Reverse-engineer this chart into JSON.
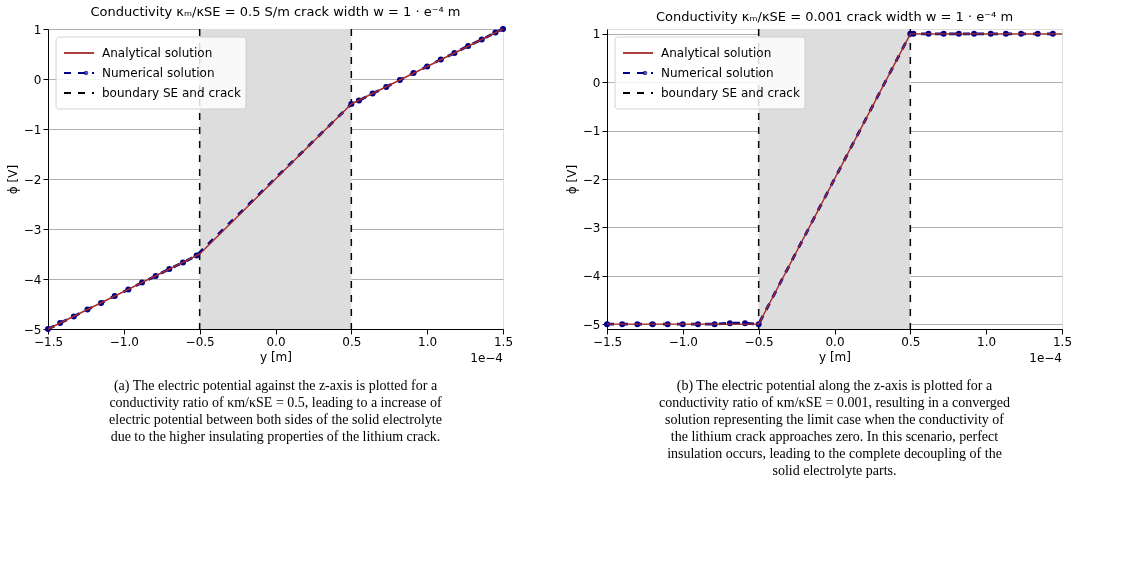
{
  "chart_data": [
    {
      "type": "line",
      "title": "Conductivity κₘ/κSE = 0.5 S/m crack width w = 1 · e⁻⁴ m",
      "xlabel": "y [m]",
      "ylabel": "ϕ [V]",
      "series": [
        {
          "name": "Analytical solution",
          "color": "#a52a2a",
          "x": [
            -1.5,
            -0.5,
            0.5,
            1.5
          ],
          "values": [
            -5,
            -3.5,
            -0.5,
            1
          ]
        },
        {
          "name": "Numerical solution",
          "color": "#00008b",
          "marker": "circle",
          "line_style": "dashed",
          "x": [
            -1.5,
            -1.42,
            -1.33,
            -1.24,
            -1.15,
            -1.06,
            -0.97,
            -0.88,
            -0.79,
            -0.7,
            -0.61,
            -0.52,
            0.5,
            0.55,
            0.64,
            0.73,
            0.82,
            0.91,
            1.0,
            1.09,
            1.18,
            1.27,
            1.36,
            1.45,
            1.5
          ],
          "values": [
            -5,
            -4.88,
            -4.75,
            -4.61,
            -4.48,
            -4.34,
            -4.21,
            -4.07,
            -3.94,
            -3.8,
            -3.67,
            -3.53,
            -0.5,
            -0.43,
            -0.29,
            -0.16,
            -0.02,
            0.12,
            0.25,
            0.39,
            0.52,
            0.66,
            0.79,
            0.93,
            1
          ]
        }
      ],
      "ref_lines": [
        {
          "axis": "x",
          "value": -0.5,
          "label": "boundary SE and crack",
          "color": "#000000",
          "line_style": "dashed"
        },
        {
          "axis": "x",
          "value": 0.5,
          "color": "#000000",
          "line_style": "dashed"
        }
      ],
      "bands": [
        {
          "axis": "x",
          "from": -0.5,
          "to": 0.5,
          "color": "#dddddd"
        }
      ],
      "xlim": [
        -1.5,
        1.5
      ],
      "xticks": [
        {
          "value": -1.5,
          "label": "−1.5"
        },
        {
          "value": -1.0,
          "label": "−1.0"
        },
        {
          "value": -0.5,
          "label": "−0.5"
        },
        {
          "value": 0,
          "label": "0.0"
        },
        {
          "value": 0.5,
          "label": "0.5"
        },
        {
          "value": 1.0,
          "label": "1.0"
        },
        {
          "value": 1.5,
          "label": "1.5"
        }
      ],
      "ylim": [
        -5,
        1
      ],
      "yticks": [
        {
          "value": -5,
          "label": "−5"
        },
        {
          "value": -4,
          "label": "−4"
        },
        {
          "value": -3,
          "label": "−3"
        },
        {
          "value": -2,
          "label": "−2"
        },
        {
          "value": -1,
          "label": "−1"
        },
        0,
        1
      ],
      "grid": "y",
      "legend": "top left",
      "annotations": [
        "1e−4",
        "(a) The electric potential against the z-axis is plotted for a conductivity ratio of κm/κSE = 0.5, leading to a increase of electric potential between both sides of the solid electrolyte due to the higher insulating properties of the lithium crack."
      ]
    },
    {
      "type": "line",
      "title": "Conductivity κₘ/κSE = 0.001 crack width w = 1 · e⁻⁴ m",
      "xlabel": "y [m]",
      "ylabel": "ϕ [V]",
      "series": [
        {
          "name": "Analytical solution",
          "color": "#a52a2a",
          "x": [
            -1.5,
            -0.5,
            0.5,
            1.5
          ],
          "values": [
            -5,
            -5,
            1,
            1
          ]
        },
        {
          "name": "Numerical solution",
          "color": "#00008b",
          "marker": "circle",
          "line_style": "dashed",
          "x": [
            -1.5,
            -1.4,
            -1.3,
            -1.2,
            -1.1,
            -1.0,
            -0.9,
            -0.79,
            -0.69,
            -0.59,
            -0.5,
            0.5,
            0.52,
            0.62,
            0.72,
            0.82,
            0.92,
            1.03,
            1.13,
            1.23,
            1.34,
            1.44
          ],
          "values": [
            -5,
            -5,
            -5,
            -5,
            -5,
            -5,
            -5,
            -5,
            -4.98,
            -4.98,
            -5,
            1,
            1,
            1,
            1,
            1,
            1,
            1,
            1,
            1,
            1,
            1
          ]
        }
      ],
      "ref_lines": [
        {
          "axis": "x",
          "value": -0.5,
          "label": "boundary SE and crack",
          "color": "#000000",
          "line_style": "dashed"
        },
        {
          "axis": "x",
          "value": 0.5,
          "color": "#000000",
          "line_style": "dashed"
        }
      ],
      "bands": [
        {
          "axis": "x",
          "from": -0.5,
          "to": 0.5,
          "color": "#dddddd"
        }
      ],
      "xlim": [
        -1.5,
        1.5
      ],
      "xticks": [
        {
          "value": -1.5,
          "label": "−1.5"
        },
        {
          "value": -1.0,
          "label": "−1.0"
        },
        {
          "value": -0.5,
          "label": "−0.5"
        },
        {
          "value": 0,
          "label": "0.0"
        },
        {
          "value": 0.5,
          "label": "0.5"
        },
        {
          "value": 1.0,
          "label": "1.0"
        },
        {
          "value": 1.5,
          "label": "1.5"
        }
      ],
      "ylim": [
        -5.1,
        1.1
      ],
      "yticks": [
        {
          "value": -5,
          "label": "−5"
        },
        {
          "value": -4,
          "label": "−4"
        },
        {
          "value": -3,
          "label": "−3"
        },
        {
          "value": -2,
          "label": "−2"
        },
        {
          "value": -1,
          "label": "−1"
        },
        0,
        1
      ],
      "grid": "y",
      "legend": "top left",
      "annotations": [
        "1e−4",
        "(b) The electric potential along the z-axis is plotted for a conductivity ratio of κm/κSE = 0.001, resulting in a converged solution representing the limit case when the conductivity of the lithium crack approaches zero. In this scenario, perfect insulation occurs, leading to the complete decoupling of the solid electrolyte parts."
      ]
    }
  ]
}
